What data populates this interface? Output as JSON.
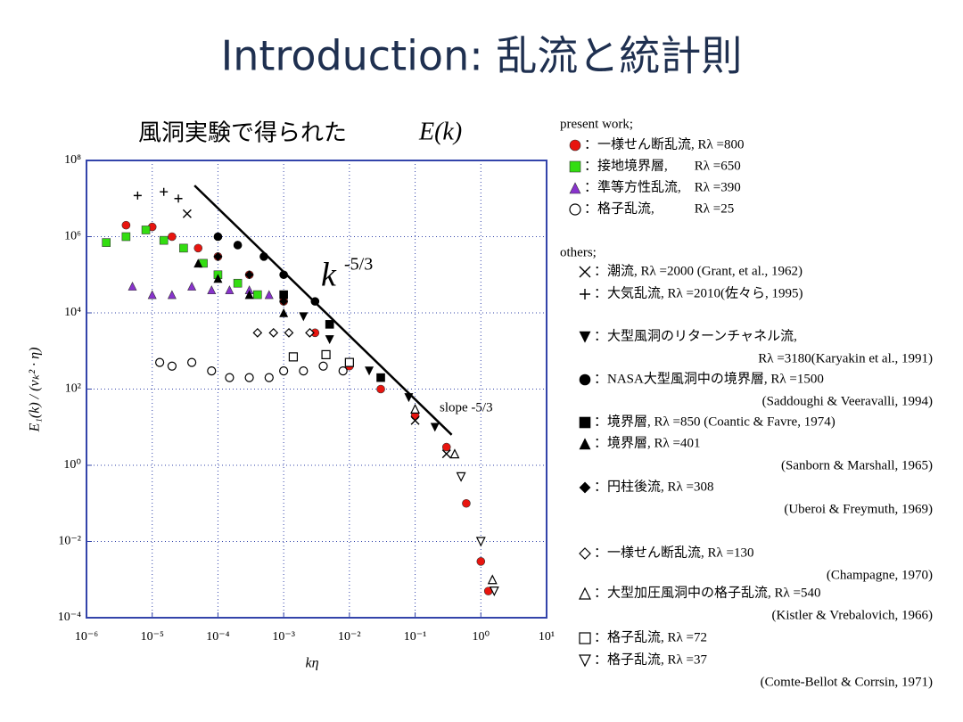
{
  "chart_data": {
    "type": "scatter",
    "title": "Introduction: 乱流と統計則",
    "subtitle": "風洞実験で得られた",
    "subtitle_math": "E(k)",
    "x_label": "kη",
    "y_label": "E₁(k) / (vₖ² · η)",
    "xscale": "log",
    "yscale": "log",
    "grid": true,
    "xlim": [
      1e-06,
      10
    ],
    "ylim": [
      0.0001,
      100000000
    ],
    "xticks": [
      {
        "value": 1e-06,
        "label": "10⁻⁶"
      },
      {
        "value": 1e-05,
        "label": "10⁻⁵"
      },
      {
        "value": 0.0001,
        "label": "10⁻⁴"
      },
      {
        "value": 0.001,
        "label": "10⁻³"
      },
      {
        "value": 0.01,
        "label": "10⁻²"
      },
      {
        "value": 0.1,
        "label": "10⁻¹"
      },
      {
        "value": 1,
        "label": "10⁰"
      },
      {
        "value": 10,
        "label": "10¹"
      }
    ],
    "yticks": [
      {
        "value": 0.0001,
        "label": "10⁻⁴"
      },
      {
        "value": 0.01,
        "label": "10⁻²"
      },
      {
        "value": 1,
        "label": "10⁰"
      },
      {
        "value": 100,
        "label": "10²"
      },
      {
        "value": 10000,
        "label": "10⁴"
      },
      {
        "value": 1000000,
        "label": "10⁶"
      },
      {
        "value": 100000000,
        "label": "10⁸"
      }
    ],
    "fit_line": {
      "x": [
        4.4e-05,
        0.36
      ],
      "y": [
        22000000,
        6.3
      ]
    },
    "annotation_k": "k",
    "annotation_exp": "-5/3",
    "annotation_slope": "slope -5/3",
    "legend_groups": [
      "present work;",
      "others;"
    ],
    "series": [
      {
        "name": "：一様せん断乱流, Rλ =800",
        "marker": "circle",
        "color": "#e8150f",
        "group": 0,
        "x": [
          4e-06,
          1e-05,
          2e-05,
          5e-05,
          0.0001,
          0.0003,
          0.001,
          0.003,
          0.01,
          0.03,
          0.1,
          0.3,
          0.6,
          1,
          1.3
        ],
        "values": [
          2000000,
          1800000,
          1000000,
          500000,
          300000,
          100000,
          20000,
          3000,
          400,
          100,
          20,
          3,
          0.1,
          0.003,
          0.0005
        ]
      },
      {
        "name": "：接地境界層,　　Rλ =650",
        "marker": "square",
        "color": "#33dd11",
        "group": 0,
        "x": [
          2e-06,
          4e-06,
          8e-06,
          1.5e-05,
          3e-05,
          6e-05,
          0.0001,
          0.0002,
          0.0004
        ],
        "values": [
          700000,
          1000000,
          1500000,
          800000,
          500000,
          200000,
          100000,
          60000,
          30000
        ]
      },
      {
        "name": "：準等方性乱流,　Rλ =390",
        "marker": "triangle",
        "color": "#8833cc",
        "group": 0,
        "x": [
          5e-06,
          1e-05,
          2e-05,
          4e-05,
          8e-05,
          0.00015,
          0.0003,
          0.0006
        ],
        "values": [
          50000,
          30000,
          30000,
          50000,
          40000,
          40000,
          40000,
          30000
        ]
      },
      {
        "name": "：格子乱流,　　　Rλ =25",
        "marker": "circle-open",
        "color": "#000000",
        "group": 0,
        "x": [
          1.3e-05,
          2e-05,
          4e-05,
          8e-05,
          0.00015,
          0.0003,
          0.0006,
          0.001,
          0.002,
          0.004,
          0.008
        ],
        "values": [
          500,
          400,
          500,
          300,
          200,
          200,
          200,
          300,
          300,
          400,
          300
        ]
      },
      {
        "name": "：潮流, Rλ =2000 (Grant, et al., 1962)",
        "marker": "x",
        "color": "#000000",
        "group": 1,
        "x": [
          3.4e-05,
          0.1,
          0.3
        ],
        "values": [
          4000000,
          15,
          2
        ]
      },
      {
        "name": "：大気乱流, Rλ =2010(佐々ら, 1995)",
        "marker": "plus",
        "color": "#000000",
        "group": 1,
        "x": [
          6e-06,
          1.5e-05,
          2.5e-05
        ],
        "values": [
          12000000,
          15000000,
          10000000
        ]
      },
      {
        "name": "：大型風洞のリターンチャネル流,",
        "note": "Rλ =3180(Karyakin et al., 1991)",
        "marker": "triangle-down",
        "color": "#000000",
        "group": 1,
        "x": [
          0.002,
          0.005,
          0.02,
          0.08,
          0.2
        ],
        "values": [
          8000,
          2000,
          300,
          60,
          10
        ]
      },
      {
        "name": "：NASA大型風洞中の境界層, Rλ =1500",
        "note": "(Saddoughi & Veeravalli, 1994)",
        "marker": "circle",
        "color": "#000000",
        "group": 1,
        "x": [
          0.0001,
          0.0002,
          0.0005,
          0.001,
          0.003
        ],
        "values": [
          1000000,
          600000,
          300000,
          100000,
          20000
        ]
      },
      {
        "name": "：境界層, Rλ =850 (Coantic & Favre, 1974)",
        "marker": "square",
        "color": "#000000",
        "group": 1,
        "x": [
          0.001,
          0.005,
          0.03
        ],
        "values": [
          30000,
          5000,
          200
        ]
      },
      {
        "name": "：境界層, Rλ =401",
        "note": "(Sanborn & Marshall, 1965)",
        "marker": "triangle",
        "color": "#000000",
        "group": 1,
        "x": [
          5e-05,
          0.0001,
          0.0003,
          0.001
        ],
        "values": [
          200000,
          80000,
          30000,
          10000
        ]
      },
      {
        "name": "：円柱後流, Rλ =308",
        "note": "(Uberoi & Freymuth, 1969)",
        "marker": "diamond",
        "color": "#000000",
        "group": 1,
        "x": [
          0.0001,
          0.0003,
          0.001,
          0.01
        ],
        "values": [
          300000,
          100000,
          20000,
          500
        ]
      },
      {
        "name": "：一様せん断乱流, Rλ =130",
        "note": "(Champagne, 1970)",
        "marker": "diamond-open",
        "color": "#000000",
        "group": 1,
        "x": [
          0.0004,
          0.0007,
          0.0012,
          0.0025
        ],
        "values": [
          3000,
          3000,
          3000,
          3000
        ]
      },
      {
        "name": "：大型加圧風洞中の格子乱流, Rλ =540",
        "note": "(Kistler & Vrebalovich, 1966)",
        "marker": "triangle-open",
        "color": "#000000",
        "group": 1,
        "x": [
          0.1,
          0.4,
          1.5
        ],
        "values": [
          30,
          2,
          0.001
        ]
      },
      {
        "name": "：格子乱流, Rλ =72",
        "marker": "square-open",
        "color": "#000000",
        "group": 1,
        "x": [
          0.0014,
          0.0044,
          0.01
        ],
        "values": [
          700,
          800,
          500
        ]
      },
      {
        "name": "：格子乱流, Rλ =37",
        "note": "(Comte-Bellot & Corrsin, 1971)",
        "marker": "triangle-down-open",
        "color": "#000000",
        "group": 1,
        "x": [
          0.5,
          1,
          1.6
        ],
        "values": [
          0.5,
          0.01,
          0.0005
        ]
      }
    ]
  }
}
